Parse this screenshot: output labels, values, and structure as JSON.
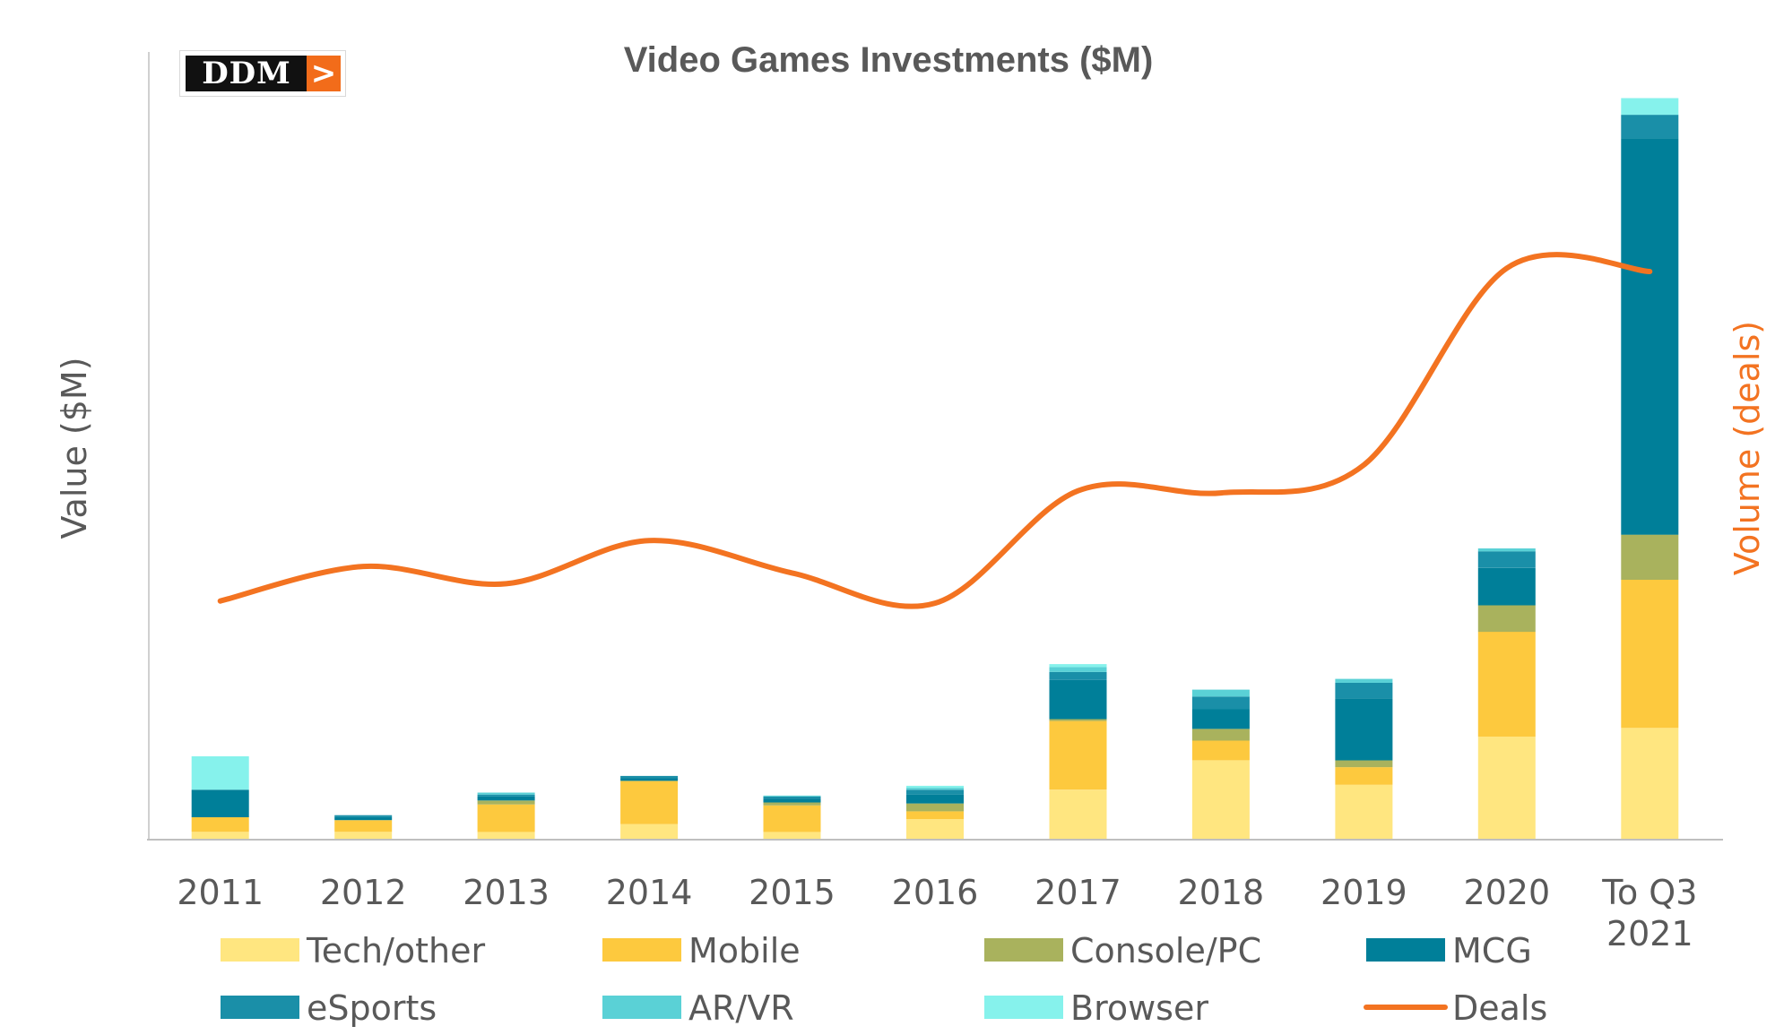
{
  "chart_data": {
    "type": "bar",
    "stacked": true,
    "title": "Video Games Investments ($M)",
    "ylabel": "Value ($M)",
    "y2label": "Volume (deals)",
    "categories": [
      [
        "2011"
      ],
      [
        "2012"
      ],
      [
        "2013"
      ],
      [
        "2014"
      ],
      [
        "2015"
      ],
      [
        "2016"
      ],
      [
        "2017"
      ],
      [
        "2018"
      ],
      [
        "2019"
      ],
      [
        "2020"
      ],
      [
        "To Q3",
        "2021"
      ]
    ],
    "ylim": [
      0,
      760
    ],
    "y2lim": [
      0,
      690
    ],
    "grid": false,
    "legend_position": "bottom",
    "series": [
      {
        "name": "Tech/other",
        "color": "#ffe680",
        "values": [
          7,
          7,
          7,
          15,
          7,
          20,
          50,
          80,
          55,
          104,
          113
        ]
      },
      {
        "name": "Mobile",
        "color": "#fdc93e",
        "values": [
          15,
          12,
          28,
          44,
          27,
          8,
          70,
          20,
          18,
          107,
          151
        ]
      },
      {
        "name": "Console/PC",
        "color": "#a9b25d",
        "values": [
          0,
          0,
          4,
          0,
          3,
          8,
          2,
          12,
          7,
          27,
          46
        ]
      },
      {
        "name": "MCG",
        "color": "#007f99",
        "values": [
          28,
          3,
          4,
          3,
          4,
          9,
          40,
          20,
          63,
          38,
          404
        ]
      },
      {
        "name": "eSports",
        "color": "#1a8fa8",
        "values": [
          0,
          2,
          2,
          2,
          2,
          5,
          8,
          13,
          16,
          17,
          24
        ]
      },
      {
        "name": "AR/VR",
        "color": "#5ad1d6",
        "values": [
          0,
          0,
          2,
          0,
          1,
          2,
          5,
          7,
          4,
          3,
          0
        ]
      },
      {
        "name": "Browser",
        "color": "#86f2ec",
        "values": [
          34,
          0,
          0,
          0,
          0,
          2,
          3,
          0,
          0,
          0,
          17
        ]
      }
    ],
    "line_series": {
      "name": "Deals",
      "color": "#f37321",
      "axis": "secondary",
      "values": [
        220,
        252,
        236,
        276,
        246,
        218,
        322,
        320,
        346,
        528,
        525
      ]
    }
  },
  "logo": {
    "text": "DDM",
    "mark": ">"
  }
}
